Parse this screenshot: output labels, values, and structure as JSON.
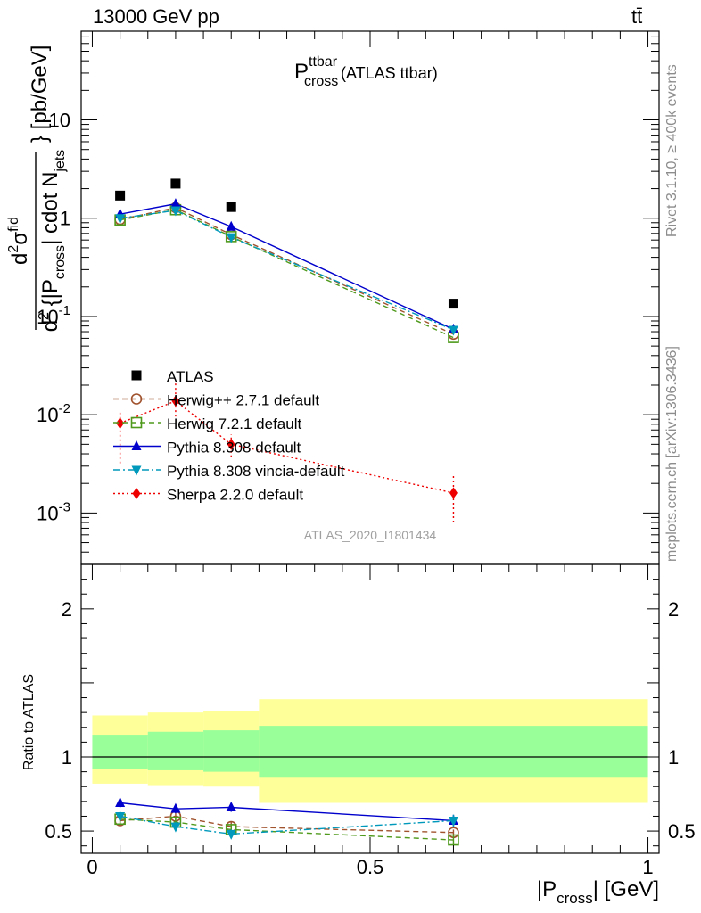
{
  "header": {
    "left": "13000 GeV pp",
    "right": "tt̄"
  },
  "side_labels": {
    "rivet": "Rivet 3.1.10, ≥ 400k events",
    "mcplots": "mcplots.cern.ch [arXiv:1306.3436]"
  },
  "chart_data": [
    {
      "type": "scatter",
      "panel": "main",
      "title": {
        "main": "P",
        "sup": "ttbar",
        "sub": "cross",
        "rest": " (ATLAS ttbar)"
      },
      "ylabel": "d²σ^fid / d²{|P_cross| cdot N_jets} [pb/GeV]",
      "yscale": "log",
      "ylim": [
        0.0003,
        80
      ],
      "xlim": [
        -0.02,
        1.02
      ],
      "y_tick_labels": [
        {
          "base": "10",
          "exp": "-3",
          "value": 0.001
        },
        {
          "base": "10",
          "exp": "-2",
          "value": 0.01
        },
        {
          "base": "10",
          "exp": "-1",
          "value": 0.1
        },
        {
          "base": "1",
          "exp": "",
          "value": 1
        },
        {
          "base": "10",
          "exp": "",
          "value": 10
        }
      ],
      "watermark": "ATLAS_2020_I1801434",
      "legend_position": "bottom-left",
      "series": [
        {
          "name": "ATLAS",
          "color": "#000000",
          "marker": "square-filled",
          "line": "none",
          "x": [
            0.05,
            0.15,
            0.25,
            0.65
          ],
          "y": [
            1.7,
            2.25,
            1.3,
            0.135
          ]
        },
        {
          "name": "Herwig++ 2.7.1 default",
          "color": "#a0522d",
          "marker": "circle-open",
          "line": "dashed",
          "x": [
            0.05,
            0.15,
            0.25,
            0.65
          ],
          "y": [
            0.97,
            1.28,
            0.68,
            0.066
          ]
        },
        {
          "name": "Herwig 7.2.1 default",
          "color": "#4f9a1c",
          "marker": "square-open",
          "line": "dashed",
          "x": [
            0.05,
            0.15,
            0.25,
            0.65
          ],
          "y": [
            0.96,
            1.22,
            0.65,
            0.061
          ]
        },
        {
          "name": "Pythia 8.308 default",
          "color": "#0000cc",
          "marker": "triangle-up",
          "line": "solid",
          "x": [
            0.05,
            0.15,
            0.25,
            0.65
          ],
          "y": [
            1.1,
            1.4,
            0.82,
            0.074
          ]
        },
        {
          "name": "Pythia 8.308 vincia-default",
          "color": "#0099bb",
          "marker": "triangle-down",
          "line": "dashdot",
          "x": [
            0.05,
            0.15,
            0.25,
            0.65
          ],
          "y": [
            1.0,
            1.2,
            0.64,
            0.073
          ]
        },
        {
          "name": "Sherpa 2.2.0 default",
          "color": "#ee0000",
          "marker": "diamond",
          "line": "dotted",
          "x": [
            0.05,
            0.15,
            0.25,
            0.65
          ],
          "y": [
            0.0082,
            0.0138,
            0.005,
            0.0016
          ],
          "ylow": [
            0.0032,
            0.0096,
            0.0037,
            0.0008
          ],
          "yhigh": [
            0.0105,
            0.021,
            0.0063,
            0.0024
          ]
        }
      ]
    },
    {
      "type": "line",
      "panel": "ratio",
      "ylabel": "Ratio to ATLAS",
      "xlabel": {
        "pre": "|P",
        "sub": "cross",
        "post": "| [GeV]"
      },
      "xlim": [
        -0.02,
        1.02
      ],
      "ylim": [
        0.35,
        2.3
      ],
      "x_tick_labels": [
        {
          "text": "0",
          "value": 0
        },
        {
          "text": "0.5",
          "value": 0.5
        },
        {
          "text": "1",
          "value": 1
        }
      ],
      "y_tick_labels": [
        {
          "text": "0.5",
          "value": 0.5
        },
        {
          "text": "1",
          "value": 1
        },
        {
          "text": "2",
          "value": 2
        }
      ],
      "bands": {
        "edges": [
          0,
          0.1,
          0.2,
          0.3,
          1.0
        ],
        "outer": {
          "color": "#ffff99",
          "low": [
            0.82,
            0.81,
            0.8,
            0.69
          ],
          "high": [
            1.28,
            1.3,
            1.31,
            1.39
          ]
        },
        "inner": {
          "color": "#99ff99",
          "low": [
            0.92,
            0.91,
            0.9,
            0.86
          ],
          "high": [
            1.15,
            1.17,
            1.18,
            1.21
          ]
        }
      },
      "series": [
        {
          "name": "Herwig++ 2.7.1 default",
          "color": "#a0522d",
          "marker": "circle-open",
          "line": "dashed",
          "x": [
            0.05,
            0.15,
            0.25,
            0.65
          ],
          "y": [
            0.57,
            0.6,
            0.53,
            0.49
          ],
          "err": [
            0.03,
            0.03,
            0.03,
            0.02
          ]
        },
        {
          "name": "Herwig 7.2.1 default",
          "color": "#4f9a1c",
          "marker": "square-open",
          "line": "dashed",
          "x": [
            0.05,
            0.15,
            0.25,
            0.65
          ],
          "y": [
            0.58,
            0.56,
            0.51,
            0.44
          ],
          "err": [
            0.03,
            0.03,
            0.03,
            0.03
          ]
        },
        {
          "name": "Pythia 8.308 default",
          "color": "#0000cc",
          "marker": "triangle-up",
          "line": "solid",
          "x": [
            0.05,
            0.15,
            0.25,
            0.65
          ],
          "y": [
            0.69,
            0.65,
            0.66,
            0.57
          ],
          "err": [
            0.03,
            0.03,
            0.03,
            0.04
          ]
        },
        {
          "name": "Pythia 8.308 vincia-default",
          "color": "#0099bb",
          "marker": "triangle-down",
          "line": "dashdot",
          "x": [
            0.05,
            0.15,
            0.25,
            0.65
          ],
          "y": [
            0.6,
            0.53,
            0.48,
            0.57
          ],
          "err": [
            0.03,
            0.03,
            0.03,
            0.04
          ]
        }
      ]
    }
  ]
}
